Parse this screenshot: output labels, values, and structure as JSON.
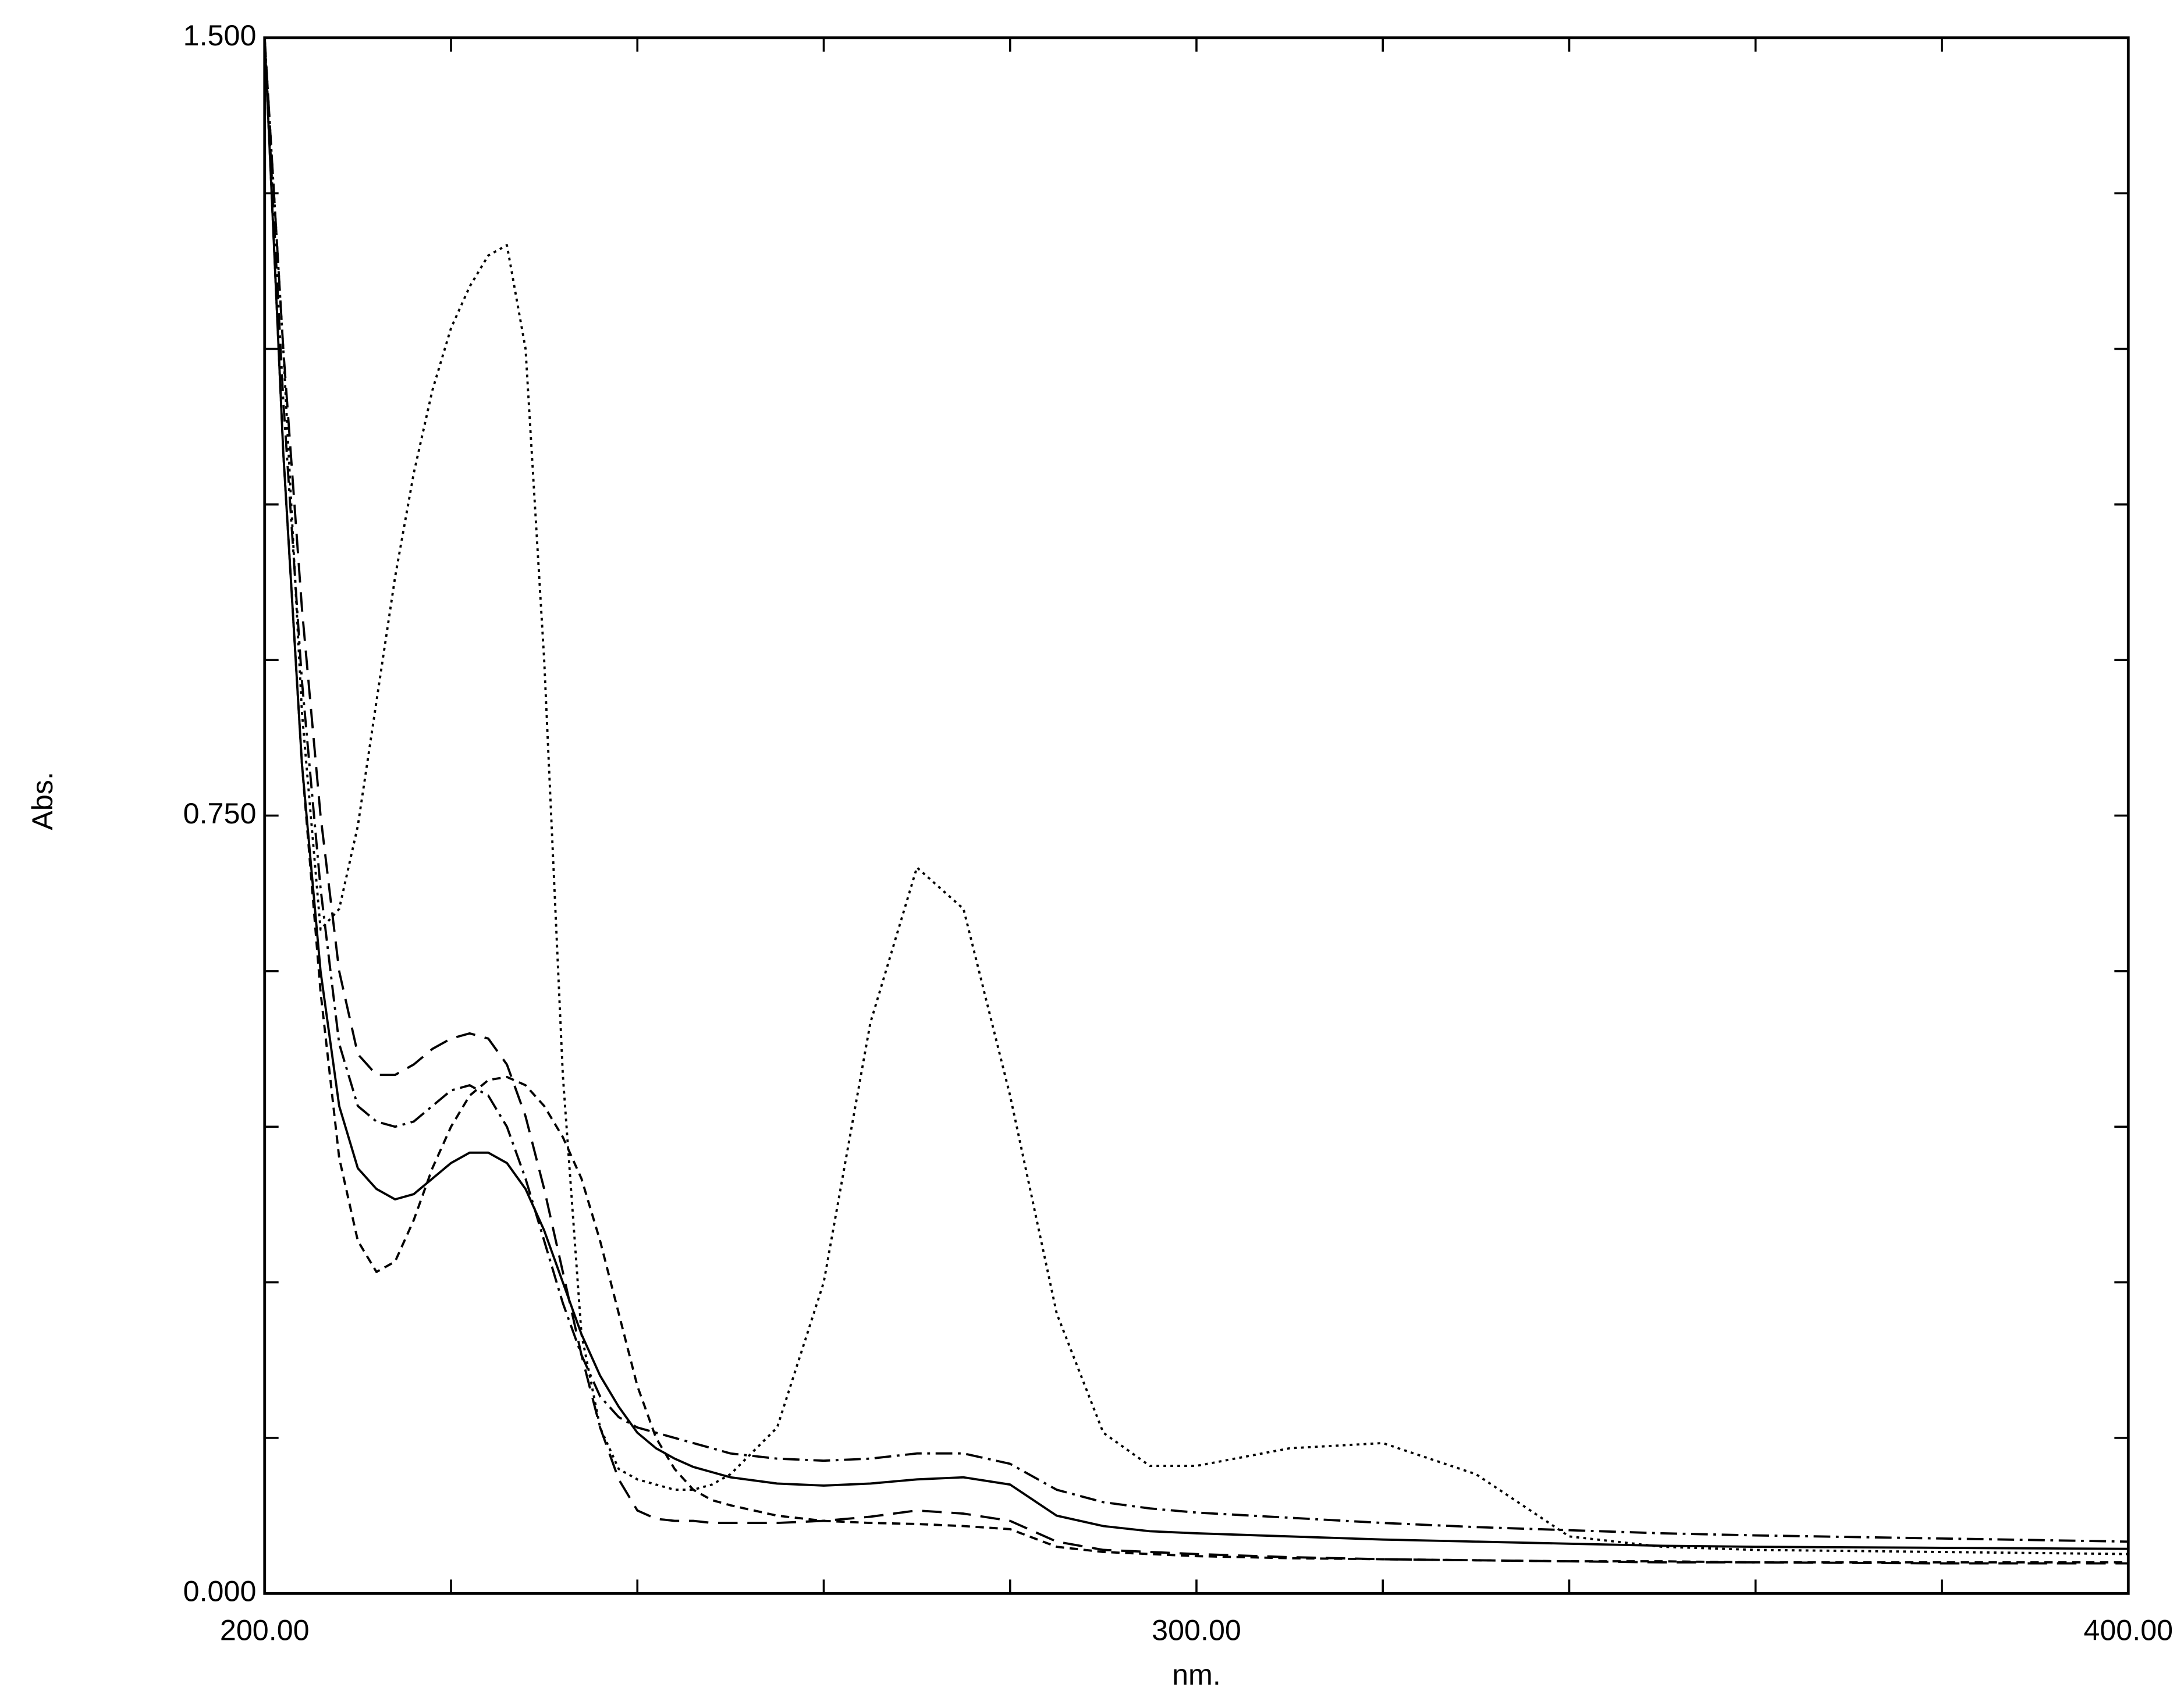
{
  "chart_data": {
    "type": "line",
    "x_label": "nm.",
    "y_label": "Abs.",
    "xlim": [
      200,
      400
    ],
    "xticks": [
      {
        "value": 200,
        "label": "200.00"
      },
      {
        "value": 300,
        "label": "300.00"
      },
      {
        "value": 400,
        "label": "400.00"
      }
    ],
    "xminor_ticks": [
      220,
      240,
      260,
      280,
      320,
      340,
      360,
      380
    ],
    "ylim": [
      0,
      1.5
    ],
    "yticks": [
      {
        "value": 0,
        "label": "0.000"
      },
      {
        "value": 0.75,
        "label": "0.750"
      },
      {
        "value": 1.5,
        "label": "1.500"
      }
    ],
    "yminor_ticks": [
      0.15,
      0.3,
      0.45,
      0.6,
      0.9,
      1.05,
      1.2,
      1.35
    ],
    "grid": false,
    "x": [
      200,
      202,
      204,
      206,
      208,
      210,
      212,
      214,
      216,
      218,
      220,
      222,
      224,
      226,
      228,
      230,
      232,
      234,
      236,
      238,
      240,
      242,
      244,
      246,
      248,
      250,
      255,
      260,
      265,
      270,
      275,
      280,
      285,
      290,
      295,
      300,
      310,
      320,
      330,
      340,
      350,
      360,
      380,
      400
    ],
    "series": [
      {
        "color": "#000000",
        "dash": "none",
        "values": [
          1.5,
          1.1,
          0.8,
          0.6,
          0.47,
          0.41,
          0.39,
          0.38,
          0.385,
          0.4,
          0.415,
          0.425,
          0.425,
          0.415,
          0.39,
          0.35,
          0.3,
          0.25,
          0.21,
          0.18,
          0.155,
          0.14,
          0.13,
          0.122,
          0.117,
          0.112,
          0.106,
          0.104,
          0.106,
          0.11,
          0.112,
          0.105,
          0.075,
          0.065,
          0.06,
          0.058,
          0.055,
          0.052,
          0.05,
          0.048,
          0.046,
          0.045,
          0.044,
          0.043
        ]
      },
      {
        "color": "#000000",
        "dash": "14 7",
        "values": [
          1.5,
          1.2,
          0.95,
          0.75,
          0.6,
          0.52,
          0.5,
          0.5,
          0.51,
          0.525,
          0.535,
          0.54,
          0.535,
          0.51,
          0.46,
          0.39,
          0.31,
          0.23,
          0.16,
          0.11,
          0.08,
          0.072,
          0.07,
          0.07,
          0.068,
          0.068,
          0.068,
          0.07,
          0.074,
          0.08,
          0.077,
          0.07,
          0.05,
          0.042,
          0.04,
          0.038,
          0.035,
          0.033,
          0.032,
          0.031,
          0.03,
          0.03,
          0.029,
          0.029
        ]
      },
      {
        "color": "#000000",
        "dash": "12 4 2 4",
        "values": [
          1.5,
          1.15,
          0.88,
          0.68,
          0.53,
          0.47,
          0.455,
          0.45,
          0.455,
          0.47,
          0.485,
          0.49,
          0.48,
          0.45,
          0.4,
          0.34,
          0.28,
          0.23,
          0.19,
          0.17,
          0.16,
          0.155,
          0.15,
          0.145,
          0.14,
          0.135,
          0.13,
          0.128,
          0.13,
          0.135,
          0.135,
          0.125,
          0.1,
          0.088,
          0.082,
          0.078,
          0.073,
          0.068,
          0.064,
          0.061,
          0.058,
          0.056,
          0.053,
          0.05
        ]
      },
      {
        "color": "#000000",
        "dash": "6 4",
        "values": [
          1.5,
          1.1,
          0.8,
          0.58,
          0.42,
          0.34,
          0.31,
          0.32,
          0.36,
          0.41,
          0.45,
          0.48,
          0.495,
          0.498,
          0.49,
          0.47,
          0.44,
          0.4,
          0.34,
          0.27,
          0.2,
          0.15,
          0.12,
          0.1,
          0.09,
          0.085,
          0.075,
          0.07,
          0.068,
          0.067,
          0.065,
          0.062,
          0.045,
          0.04,
          0.038,
          0.036,
          0.034,
          0.033,
          0.032,
          0.031,
          0.031,
          0.03,
          0.03,
          0.03
        ]
      },
      {
        "color": "#000000",
        "dash": "2 3",
        "values": [
          1.5,
          1.2,
          0.85,
          0.64,
          0.66,
          0.74,
          0.86,
          0.98,
          1.08,
          1.16,
          1.22,
          1.26,
          1.29,
          1.3,
          1.2,
          0.9,
          0.5,
          0.25,
          0.16,
          0.12,
          0.11,
          0.105,
          0.1,
          0.1,
          0.105,
          0.115,
          0.16,
          0.3,
          0.55,
          0.7,
          0.66,
          0.48,
          0.27,
          0.155,
          0.123,
          0.123,
          0.14,
          0.145,
          0.115,
          0.055,
          0.045,
          0.042,
          0.04,
          0.038
        ]
      }
    ]
  }
}
